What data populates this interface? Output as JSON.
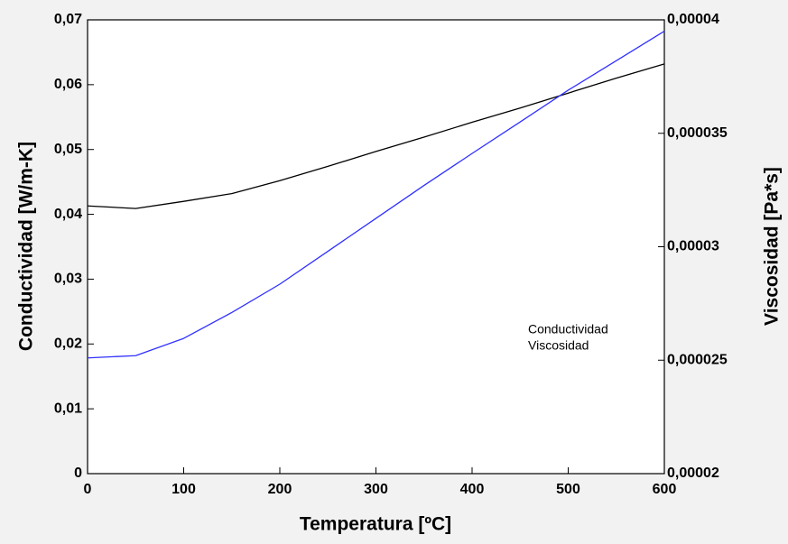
{
  "chart_data": {
    "type": "line",
    "xlabel": "Temperatura [ºC]",
    "ylabel": "Conductividad [W/m-K]",
    "y2label": "Viscosidad [Pa*s]",
    "x": [
      0,
      50,
      100,
      150,
      200,
      250,
      300,
      350,
      400,
      450,
      500,
      550,
      600
    ],
    "series": [
      {
        "name": "Conductividad",
        "color": "#000000",
        "values": [
          0.0413,
          0.0409,
          0.042,
          0.0432,
          0.0452,
          0.0474,
          0.0497,
          0.0519,
          0.0542,
          0.0564,
          0.0587,
          0.061,
          0.0632
        ]
      },
      {
        "name": "Viscosidad",
        "color": "#3030ff",
        "axis": "y2",
        "values": [
          2.51e-05,
          2.52e-05,
          2.596e-05,
          2.71e-05,
          2.835e-05,
          2.98e-05,
          3.125e-05,
          3.27e-05,
          3.411e-05,
          3.55e-05,
          3.69e-05,
          3.82e-05,
          3.95e-05
        ]
      }
    ],
    "xlim": [
      0,
      600
    ],
    "xticks": [
      0,
      100,
      200,
      300,
      400,
      500,
      600
    ],
    "ylim": [
      0,
      0.07
    ],
    "yticks": [
      0,
      {
        "value": 0.01,
        "label": "0,01"
      },
      {
        "value": 0.02,
        "label": "0,02"
      },
      {
        "value": 0.03,
        "label": "0,03"
      },
      {
        "value": 0.04,
        "label": "0,04"
      },
      {
        "value": 0.05,
        "label": "0,05"
      },
      {
        "value": 0.06,
        "label": "0,06"
      },
      {
        "value": 0.07,
        "label": "0,07"
      }
    ],
    "y2lim": [
      2e-05,
      4e-05
    ],
    "y2ticks": [
      {
        "value": 2e-05,
        "label": "0,00002"
      },
      {
        "value": 2.5e-05,
        "label": "0,000025"
      },
      {
        "value": 3e-05,
        "label": "0,00003"
      },
      {
        "value": 3.5e-05,
        "label": "0,000035"
      },
      {
        "value": 4e-05,
        "label": "0,00004"
      }
    ]
  }
}
